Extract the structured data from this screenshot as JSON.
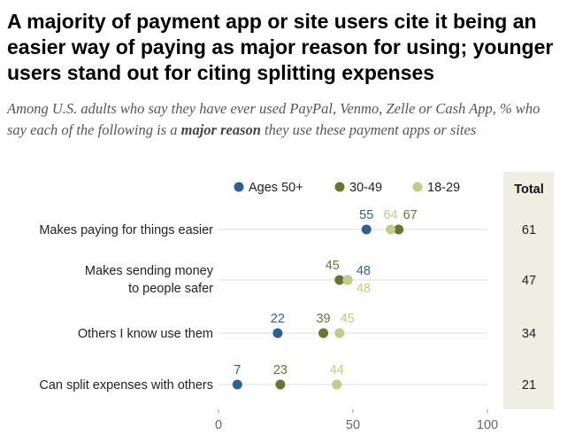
{
  "title": "A majority of payment app or site users cite it being an easier way of paying as major reason for using; younger users stand out for citing splitting expenses",
  "subtitle_pre": "Among U.S. adults who say they have ever used PayPal, Venmo, Zelle or Cash App, % who say each of the following is a ",
  "subtitle_bold": "major reason",
  "subtitle_post": " they use these payment apps or sites",
  "chart_data": {
    "type": "scatter",
    "categories": [
      [
        "Makes paying for things easier"
      ],
      [
        "Makes sending money",
        "to people safer"
      ],
      [
        "Others I know use them"
      ],
      [
        "Can split expenses with others"
      ]
    ],
    "series": [
      {
        "name": "Ages 50+",
        "color": "#2d6193",
        "values": [
          55,
          48,
          22,
          7
        ]
      },
      {
        "name": "30-49",
        "color": "#6a7431",
        "values": [
          67,
          45,
          39,
          23
        ]
      },
      {
        "name": "18-29",
        "color": "#bfcc8a",
        "values": [
          64,
          48,
          45,
          44
        ]
      }
    ],
    "total_label": "Total",
    "total": [
      61,
      47,
      34,
      21
    ],
    "xlim": [
      0,
      100
    ],
    "xticks": [
      0,
      50,
      100
    ],
    "grid": true,
    "legend": "top"
  }
}
